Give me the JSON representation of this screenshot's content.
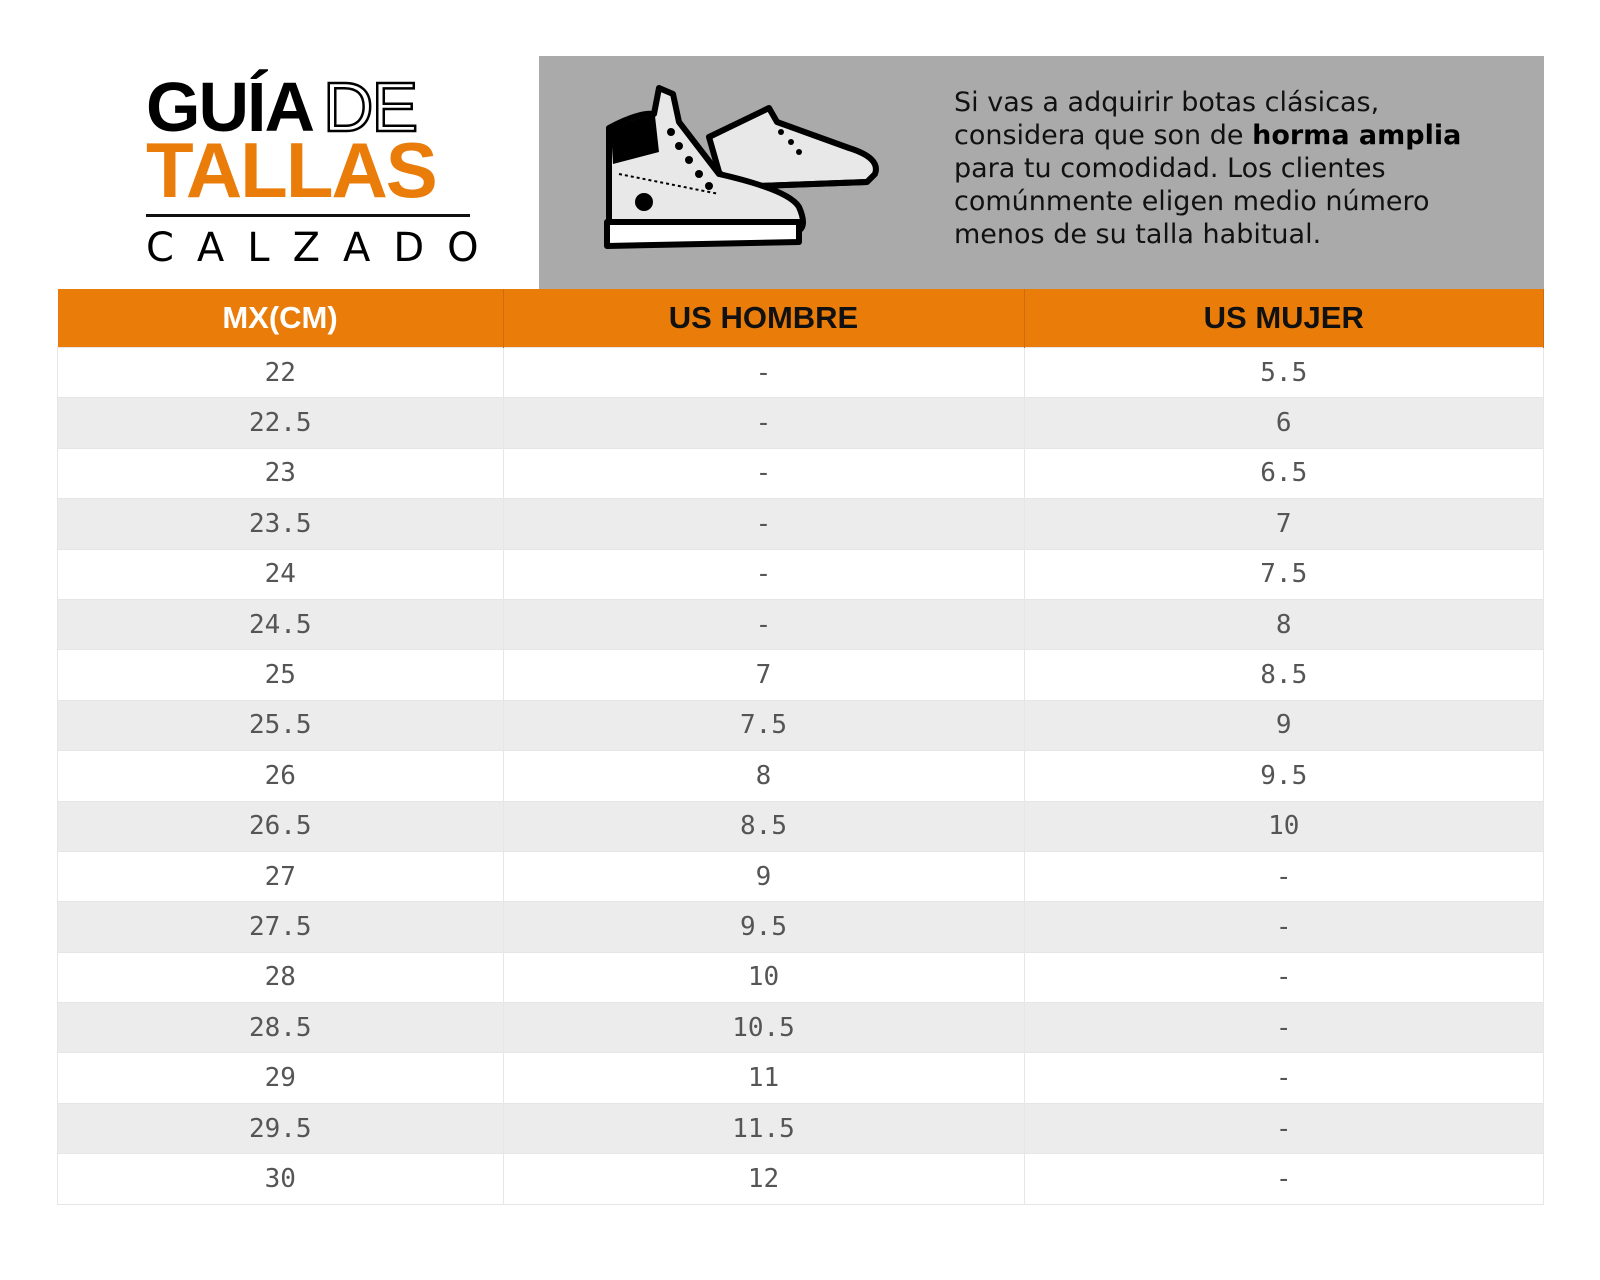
{
  "logo": {
    "line1_bold": "GUÍA",
    "line1_outline": "DE",
    "line2": "TALLAS",
    "line3": "CALZADO"
  },
  "note": {
    "before": "Si vas a adquirir botas clásicas, considera que son de ",
    "bold": "horma amplia",
    "after": " para tu comodidad. Los clientes comúnmente eligen medio número menos de su talla habitual."
  },
  "colors": {
    "accent": "#ea7c0a",
    "panel": "#aaaaaa",
    "stripe": "#ececec"
  },
  "illustration": "boots-icon",
  "table": {
    "headers": [
      "MX(CM)",
      "US HOMBRE",
      "US MUJER"
    ],
    "rows": [
      [
        "22",
        "-",
        "5.5"
      ],
      [
        "22.5",
        "-",
        "6"
      ],
      [
        "23",
        "-",
        "6.5"
      ],
      [
        "23.5",
        "-",
        "7"
      ],
      [
        "24",
        "-",
        "7.5"
      ],
      [
        "24.5",
        "-",
        "8"
      ],
      [
        "25",
        "7",
        "8.5"
      ],
      [
        "25.5",
        "7.5",
        "9"
      ],
      [
        "26",
        "8",
        "9.5"
      ],
      [
        "26.5",
        "8.5",
        "10"
      ],
      [
        "27",
        "9",
        "-"
      ],
      [
        "27.5",
        "9.5",
        "-"
      ],
      [
        "28",
        "10",
        "-"
      ],
      [
        "28.5",
        "10.5",
        "-"
      ],
      [
        "29",
        "11",
        "-"
      ],
      [
        "29.5",
        "11.5",
        "-"
      ],
      [
        "30",
        "12",
        "-"
      ]
    ]
  }
}
